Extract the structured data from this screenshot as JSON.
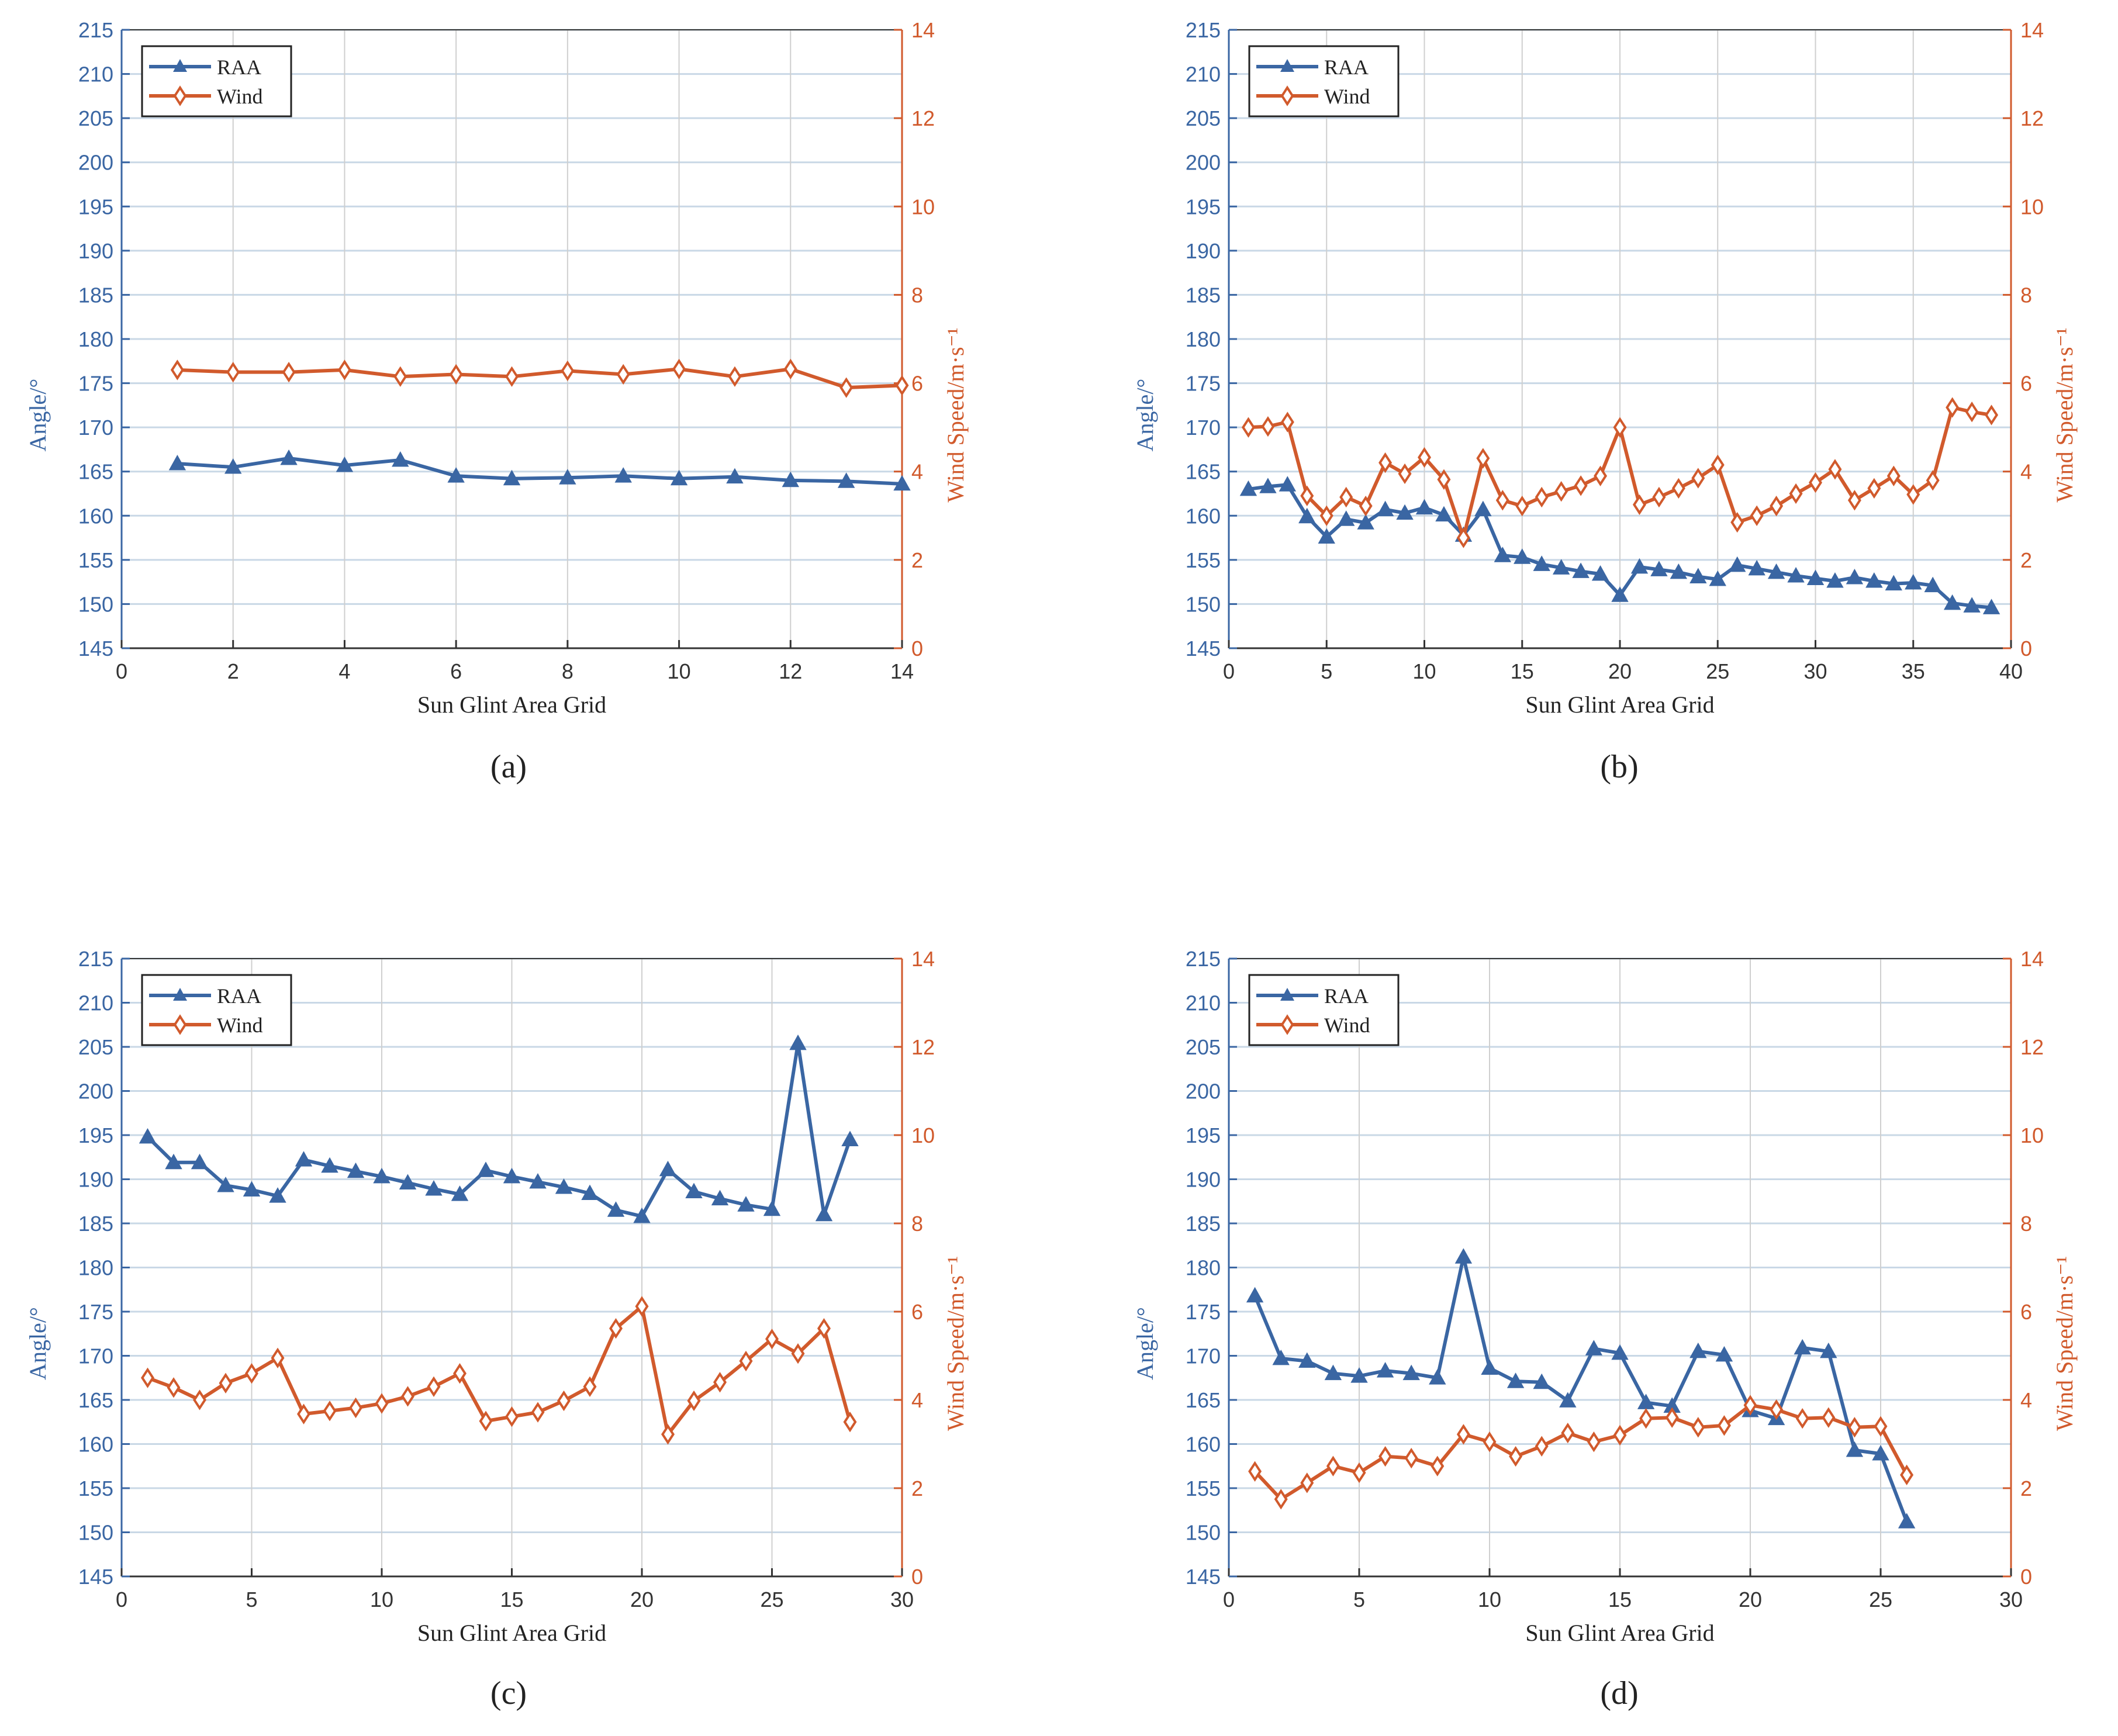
{
  "colors": {
    "raa": "#3a66a3",
    "wind": "#d15a2c",
    "grid_h": "#c9d8e6",
    "grid_v": "#cfcfcf",
    "axis": "#333333"
  },
  "chart_data": [
    {
      "type": "line",
      "panel_label": "(a)",
      "xlabel": "Sun Glint Area Grid",
      "ylabel_left": "Angle/°",
      "ylabel_right": "Wind Speed/m·s⁻¹",
      "xlim": [
        0,
        14
      ],
      "xticks": [
        0,
        2,
        4,
        6,
        8,
        10,
        12,
        14
      ],
      "ylim_left": [
        145,
        215
      ],
      "yticks_left": [
        145,
        150,
        155,
        160,
        165,
        170,
        175,
        180,
        185,
        190,
        195,
        200,
        205,
        210,
        215
      ],
      "ylim_right": [
        0,
        14
      ],
      "yticks_right": [
        0,
        2,
        4,
        6,
        8,
        10,
        12,
        14
      ],
      "legend": [
        "RAA",
        "Wind"
      ],
      "legend_position": "top-left",
      "grid": true,
      "x": [
        1,
        2,
        3,
        4,
        5,
        6,
        7,
        8,
        9,
        10,
        11,
        12,
        13,
        14
      ],
      "series": [
        {
          "name": "RAA",
          "axis": "left",
          "marker": "triangle",
          "values": [
            165.9,
            165.5,
            166.5,
            165.7,
            166.3,
            164.5,
            164.2,
            164.3,
            164.5,
            164.2,
            164.4,
            164.0,
            163.9,
            163.6
          ]
        },
        {
          "name": "Wind",
          "axis": "right",
          "marker": "diamond",
          "values": [
            6.3,
            6.25,
            6.25,
            6.3,
            6.15,
            6.2,
            6.15,
            6.28,
            6.2,
            6.32,
            6.15,
            6.32,
            5.9,
            5.95
          ]
        }
      ]
    },
    {
      "type": "line",
      "panel_label": "(b)",
      "xlabel": "Sun Glint Area Grid",
      "ylabel_left": "Angle/°",
      "ylabel_right": "Wind Speed/m·s⁻¹",
      "xlim": [
        0,
        40
      ],
      "xticks": [
        0,
        5,
        10,
        15,
        20,
        25,
        30,
        35,
        40
      ],
      "ylim_left": [
        145,
        215
      ],
      "yticks_left": [
        145,
        150,
        155,
        160,
        165,
        170,
        175,
        180,
        185,
        190,
        195,
        200,
        205,
        210,
        215
      ],
      "ylim_right": [
        0,
        14
      ],
      "yticks_right": [
        0,
        2,
        4,
        6,
        8,
        10,
        12,
        14
      ],
      "legend": [
        "RAA",
        "Wind"
      ],
      "legend_position": "top-left",
      "grid": true,
      "x": [
        1,
        2,
        3,
        4,
        5,
        6,
        7,
        8,
        9,
        10,
        11,
        12,
        13,
        14,
        15,
        16,
        17,
        18,
        19,
        20,
        21,
        22,
        23,
        24,
        25,
        26,
        27,
        28,
        29,
        30,
        31,
        32,
        33,
        34,
        35,
        36,
        37,
        38,
        39
      ],
      "series": [
        {
          "name": "RAA",
          "axis": "left",
          "marker": "triangle",
          "values": [
            163.0,
            163.3,
            163.5,
            159.9,
            157.6,
            159.6,
            159.2,
            160.7,
            160.3,
            160.9,
            160.1,
            157.8,
            160.7,
            155.5,
            155.3,
            154.5,
            154.1,
            153.7,
            153.4,
            151.0,
            154.2,
            153.9,
            153.6,
            153.1,
            152.8,
            154.4,
            154.0,
            153.6,
            153.2,
            152.9,
            152.6,
            153.0,
            152.6,
            152.3,
            152.4,
            152.1,
            150.1,
            149.8,
            149.6
          ]
        },
        {
          "name": "Wind",
          "axis": "right",
          "marker": "diamond",
          "values": [
            5.0,
            5.02,
            5.12,
            3.45,
            3.0,
            3.42,
            3.22,
            4.2,
            3.95,
            4.32,
            3.82,
            2.5,
            4.3,
            3.35,
            3.22,
            3.42,
            3.55,
            3.68,
            3.9,
            5.0,
            3.25,
            3.42,
            3.62,
            3.85,
            4.15,
            2.85,
            3.0,
            3.22,
            3.5,
            3.75,
            4.05,
            3.35,
            3.62,
            3.9,
            3.48,
            3.8,
            5.45,
            5.35,
            5.28
          ]
        }
      ]
    },
    {
      "type": "line",
      "panel_label": "(c)",
      "xlabel": "Sun Glint Area Grid",
      "ylabel_left": "Angle/°",
      "ylabel_right": "Wind Speed/m·s⁻¹",
      "xlim": [
        0,
        30
      ],
      "xticks": [
        0,
        5,
        10,
        15,
        20,
        25,
        30
      ],
      "ylim_left": [
        145,
        215
      ],
      "yticks_left": [
        145,
        150,
        155,
        160,
        165,
        170,
        175,
        180,
        185,
        190,
        195,
        200,
        205,
        210,
        215
      ],
      "ylim_right": [
        0,
        14
      ],
      "yticks_right": [
        0,
        2,
        4,
        6,
        8,
        10,
        12,
        14
      ],
      "legend": [
        "RAA",
        "Wind"
      ],
      "legend_position": "top-left",
      "grid": true,
      "x": [
        1,
        2,
        3,
        4,
        5,
        6,
        7,
        8,
        9,
        10,
        11,
        12,
        13,
        14,
        15,
        16,
        17,
        18,
        19,
        20,
        21,
        22,
        23,
        24,
        25,
        26,
        27,
        28
      ],
      "series": [
        {
          "name": "RAA",
          "axis": "left",
          "marker": "triangle",
          "values": [
            194.8,
            191.9,
            191.9,
            189.3,
            188.8,
            188.1,
            192.2,
            191.5,
            190.9,
            190.3,
            189.6,
            188.9,
            188.3,
            191.0,
            190.3,
            189.7,
            189.1,
            188.4,
            186.5,
            185.8,
            191.1,
            188.6,
            187.8,
            187.1,
            186.6,
            205.4,
            186.0,
            194.5
          ]
        },
        {
          "name": "Wind",
          "axis": "right",
          "marker": "diamond",
          "values": [
            4.5,
            4.28,
            4.0,
            4.38,
            4.6,
            4.95,
            3.68,
            3.75,
            3.82,
            3.92,
            4.08,
            4.3,
            4.6,
            3.52,
            3.62,
            3.72,
            3.98,
            4.3,
            5.62,
            6.12,
            3.22,
            3.98,
            4.4,
            4.88,
            5.38,
            5.05,
            5.62,
            3.5
          ]
        }
      ]
    },
    {
      "type": "line",
      "panel_label": "(d)",
      "xlabel": "Sun Glint Area Grid",
      "ylabel_left": "Angle/°",
      "ylabel_right": "Wind Speed/m·s⁻¹",
      "xlim": [
        0,
        30
      ],
      "xticks": [
        0,
        5,
        10,
        15,
        20,
        25,
        30
      ],
      "ylim_left": [
        145,
        215
      ],
      "yticks_left": [
        145,
        150,
        155,
        160,
        165,
        170,
        175,
        180,
        185,
        190,
        195,
        200,
        205,
        210,
        215
      ],
      "ylim_right": [
        0,
        14
      ],
      "yticks_right": [
        0,
        2,
        4,
        6,
        8,
        10,
        12,
        14
      ],
      "legend": [
        "RAA",
        "Wind"
      ],
      "legend_position": "top-left",
      "grid": true,
      "x": [
        1,
        2,
        3,
        4,
        5,
        6,
        7,
        8,
        9,
        10,
        11,
        12,
        13,
        14,
        15,
        16,
        17,
        18,
        19,
        20,
        21,
        22,
        23,
        24,
        25,
        26
      ],
      "series": [
        {
          "name": "RAA",
          "axis": "left",
          "marker": "triangle",
          "values": [
            176.8,
            169.7,
            169.4,
            168.0,
            167.7,
            168.3,
            168.0,
            167.5,
            181.2,
            168.6,
            167.1,
            167.0,
            164.9,
            170.8,
            170.3,
            164.7,
            164.3,
            170.5,
            170.1,
            163.8,
            162.9,
            170.9,
            170.5,
            159.3,
            158.9,
            151.2
          ]
        },
        {
          "name": "Wind",
          "axis": "right",
          "marker": "diamond",
          "values": [
            2.38,
            1.75,
            2.12,
            2.5,
            2.35,
            2.72,
            2.68,
            2.5,
            3.22,
            3.05,
            2.72,
            2.95,
            3.25,
            3.05,
            3.2,
            3.58,
            3.6,
            3.38,
            3.42,
            3.88,
            3.78,
            3.58,
            3.6,
            3.38,
            3.4,
            2.3
          ]
        }
      ]
    }
  ]
}
